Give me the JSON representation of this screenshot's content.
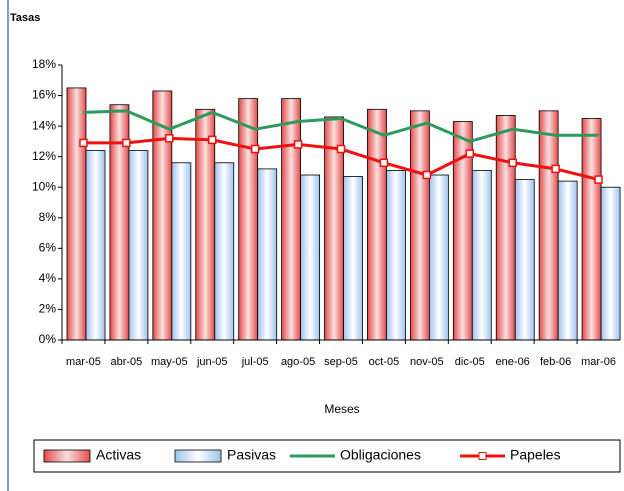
{
  "chart_data": {
    "type": "bar",
    "y_label": "Tasas",
    "x_label": "Meses",
    "categories": [
      "mar-05",
      "abr-05",
      "may-05",
      "jun-05",
      "jul-05",
      "ago-05",
      "sep-05",
      "oct-05",
      "nov-05",
      "dic-05",
      "ene-06",
      "feb-06",
      "mar-06"
    ],
    "series": [
      {
        "name": "Activas",
        "color": "#e34a4a",
        "values": [
          16.5,
          15.4,
          16.3,
          15.1,
          15.8,
          15.8,
          14.6,
          15.1,
          15.0,
          14.3,
          14.7,
          15.0,
          14.5
        ]
      },
      {
        "name": "Pasivas",
        "color": "#9fc3ee",
        "values": [
          12.4,
          12.4,
          11.6,
          11.6,
          11.2,
          10.8,
          10.7,
          11.1,
          10.8,
          11.1,
          10.5,
          10.4,
          10.0
        ]
      },
      {
        "name": "Obligaciones",
        "type": "line",
        "color": "#2e9a5a",
        "values": [
          14.9,
          15.0,
          13.8,
          14.9,
          13.8,
          14.3,
          14.5,
          13.4,
          14.2,
          13.0,
          13.8,
          13.4,
          13.4
        ]
      },
      {
        "name": "Papeles",
        "type": "line",
        "color": "#f01010",
        "values": [
          12.9,
          12.9,
          13.2,
          13.1,
          12.5,
          12.8,
          12.5,
          11.6,
          10.8,
          12.2,
          11.6,
          11.2,
          10.5
        ]
      }
    ],
    "ylim": [
      0,
      18
    ],
    "yticks": [
      {
        "value": 0,
        "label": "0%"
      },
      {
        "value": 2,
        "label": "2%"
      },
      {
        "value": 4,
        "label": "4%"
      },
      {
        "value": 6,
        "label": "6%"
      },
      {
        "value": 8,
        "label": "8%"
      },
      {
        "value": 10,
        "label": "10%"
      },
      {
        "value": 12,
        "label": "12%"
      },
      {
        "value": 14,
        "label": "14%"
      },
      {
        "value": 16,
        "label": "16%"
      },
      {
        "value": 18,
        "label": "18%"
      }
    ],
    "legend": "bottom"
  }
}
